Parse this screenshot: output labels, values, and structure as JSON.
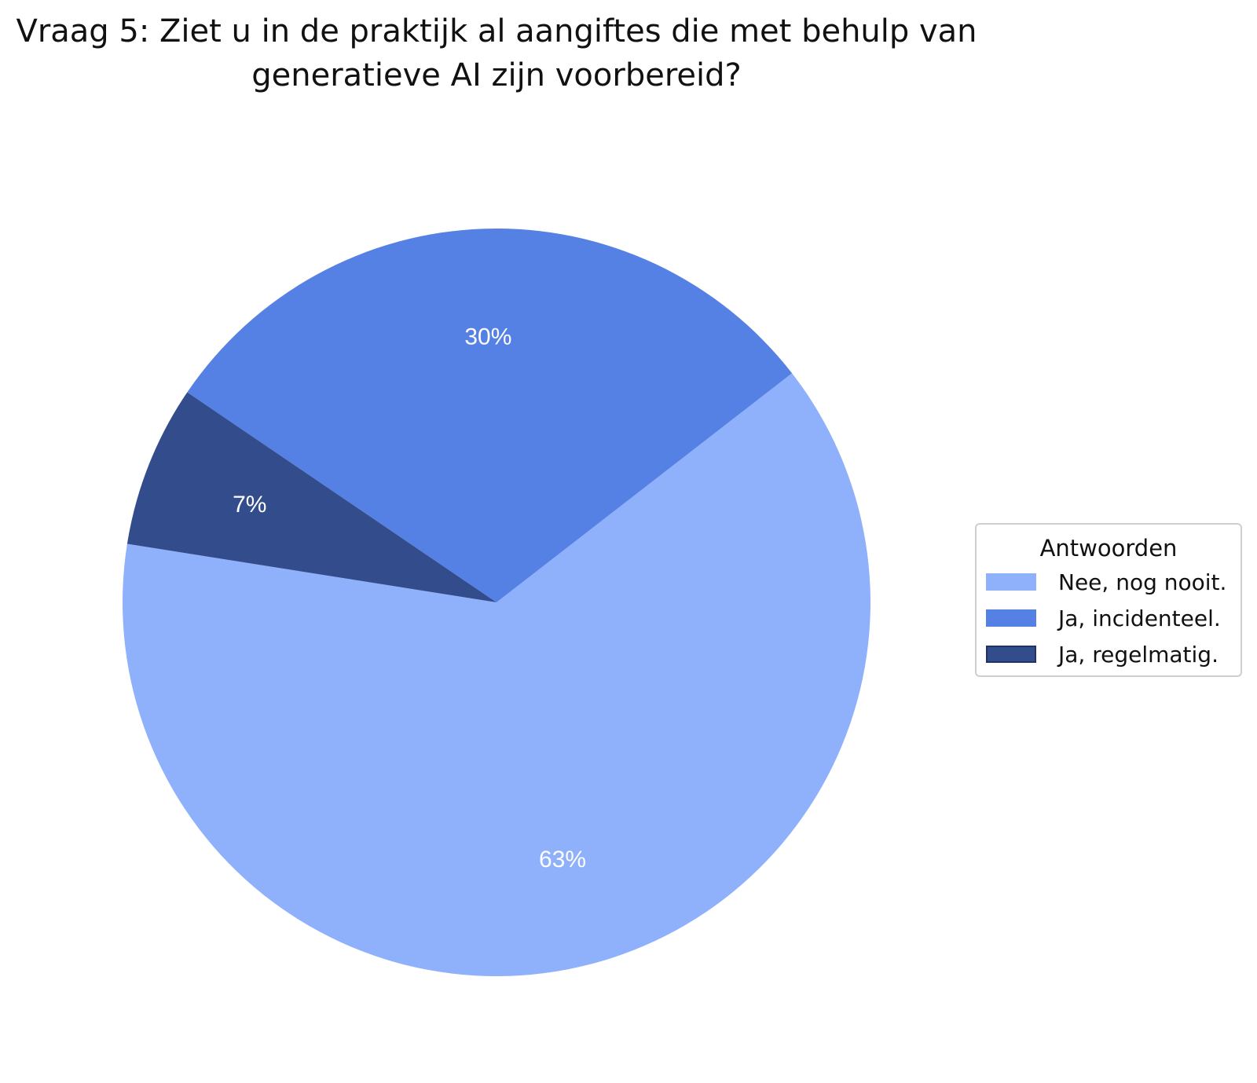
{
  "title": "Vraag 5: Ziet u in de praktijk al aangiftes die met behulp van\ngeneratieve AI zijn voorbereid?",
  "chart_data": {
    "type": "pie",
    "title": "Vraag 5: Ziet u in de praktijk al aangiftes die met behulp van\ngeneratieve AI zijn voorbereid?",
    "slices": [
      {
        "label": "Nee, nog nooit.",
        "value": 63,
        "display": "63%",
        "color": "#8fb0fb"
      },
      {
        "label": "Ja, incidenteel.",
        "value": 30,
        "display": "30%",
        "color": "#5580e4"
      },
      {
        "label": "Ja, regelmatig.",
        "value": 7,
        "display": "7%",
        "color": "#334d8c"
      }
    ],
    "start_angle_deg": 171,
    "direction": "counterclockwise",
    "legend": {
      "title": "Antwoorden",
      "position": "right"
    }
  }
}
